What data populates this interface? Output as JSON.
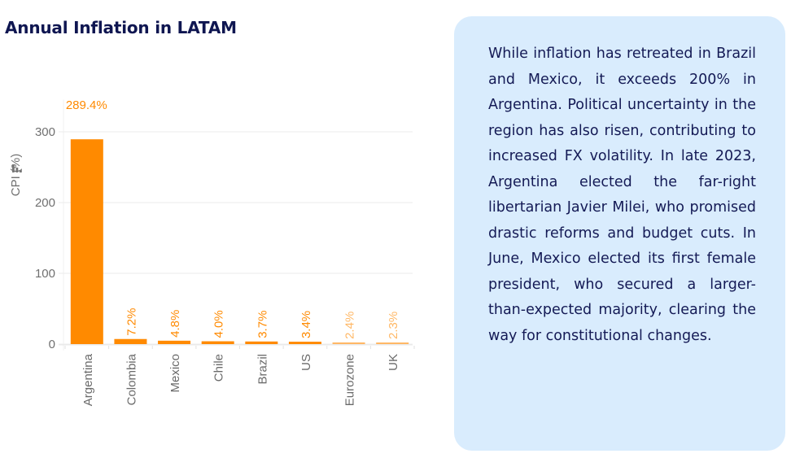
{
  "chart_data": {
    "type": "bar",
    "title": "Annual Inflation in LATAM",
    "xlabel": "",
    "ylabel": "CPI (%)",
    "ylim": [
      0,
      380
    ],
    "yticks": [
      0,
      100,
      200,
      300
    ],
    "ytick_labels": [
      "0",
      "100",
      "200",
      "300"
    ],
    "grid": true,
    "legend": "none",
    "categories": [
      "Argentina",
      "Colombia",
      "Mexico",
      "Chile",
      "Brazil",
      "US",
      "Eurozone",
      "UK"
    ],
    "values": [
      289.4,
      7.2,
      4.8,
      4.0,
      3.7,
      3.4,
      2.4,
      2.3
    ],
    "data_labels": [
      "289.4%",
      "7.2%",
      "4.8%",
      "4.0%",
      "3.7%",
      "3.4%",
      "2.4%",
      "2.3%"
    ],
    "bar_colors": [
      "#ff8a00",
      "#ff8a00",
      "#ff8a00",
      "#ff8a00",
      "#ff8a00",
      "#ff8a00",
      "#ffb866",
      "#ffb866"
    ],
    "label_color": "#ff8a00",
    "gridline_color": "#ebebeb",
    "ylabel_icon": "bar-chart-icon"
  },
  "commentary": {
    "text": "While inflation has retreated in Brazil and Mexico, it exceeds 200% in Argentina. Political uncertainty in the region has also risen, contributing to increased FX volatility. In late 2023, Argentina elected the far-right libertarian Javier Milei, who promised drastic reforms and budget cuts. In June, Mexico elected its first female president, who secured a larger-than-expected majority, clearing the way for constitutional changes.",
    "background_color": "#d9ecfd",
    "text_color": "#141a55"
  }
}
